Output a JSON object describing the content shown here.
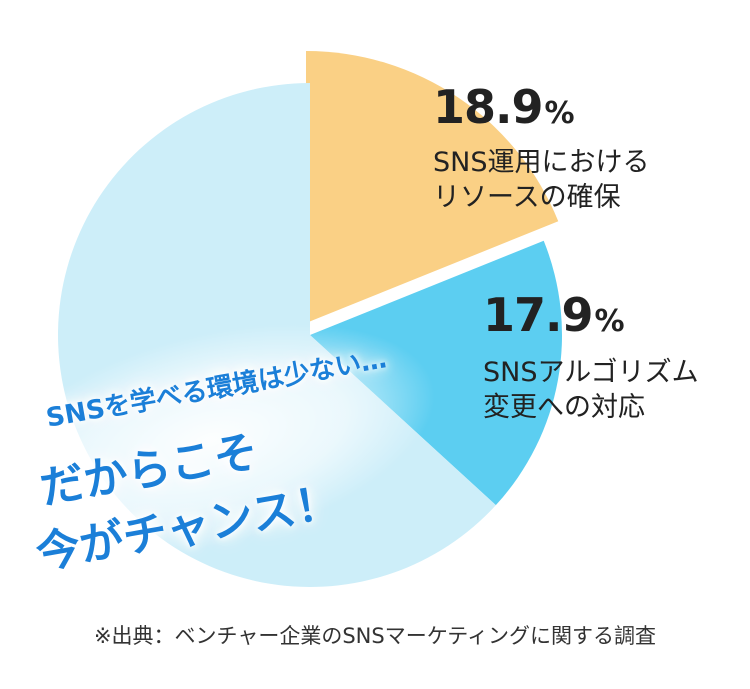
{
  "chart_data": {
    "type": "pie",
    "slices": [
      {
        "value": 18.9,
        "percent_text": "18.9",
        "label_lines": [
          "SNS運用における",
          "リソースの確保"
        ],
        "color": "#fad085"
      },
      {
        "value": 17.9,
        "percent_text": "17.9",
        "label_lines": [
          "SNSアルゴリズム",
          "変更への対応"
        ],
        "color": "#5ccef1"
      },
      {
        "value": 63.2,
        "percent_text": "",
        "label_lines": [],
        "color": "#cdeef9"
      }
    ],
    "percent_symbol": "%",
    "highlight_color": "#1b7fd8"
  },
  "callout": {
    "line1": "SNSを学べる環境は少ない…",
    "line2": "だからこそ",
    "line3": "今がチャンス！"
  },
  "source_note": "※出典：ベンチャー企業のSNSマーケティングに関する調査"
}
